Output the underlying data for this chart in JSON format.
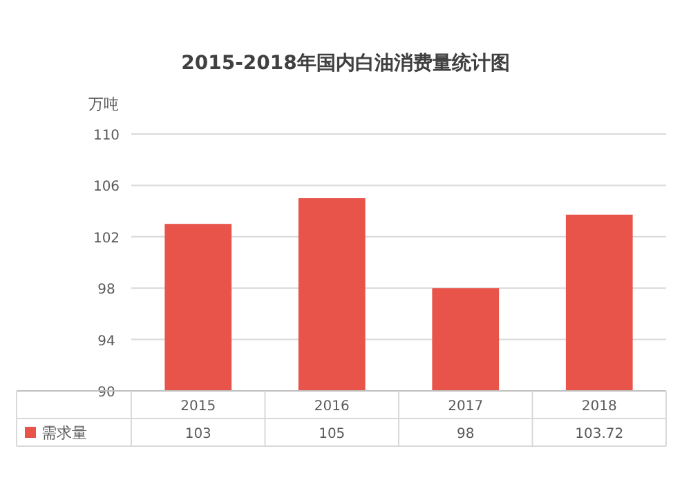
{
  "chart_data": {
    "type": "bar",
    "title": "2015-2018年国内白油消费量统计图",
    "ylabel": "万吨",
    "categories": [
      "2015",
      "2016",
      "2017",
      "2018"
    ],
    "series": [
      {
        "name": "需求量",
        "color": "#e8534a",
        "values": [
          103,
          105,
          98,
          103.72
        ]
      }
    ],
    "ylim": [
      90,
      110
    ],
    "yticks": [
      90,
      94,
      98,
      102,
      106,
      110
    ],
    "grid": "y",
    "legend": "bottom",
    "data_labels": true
  }
}
